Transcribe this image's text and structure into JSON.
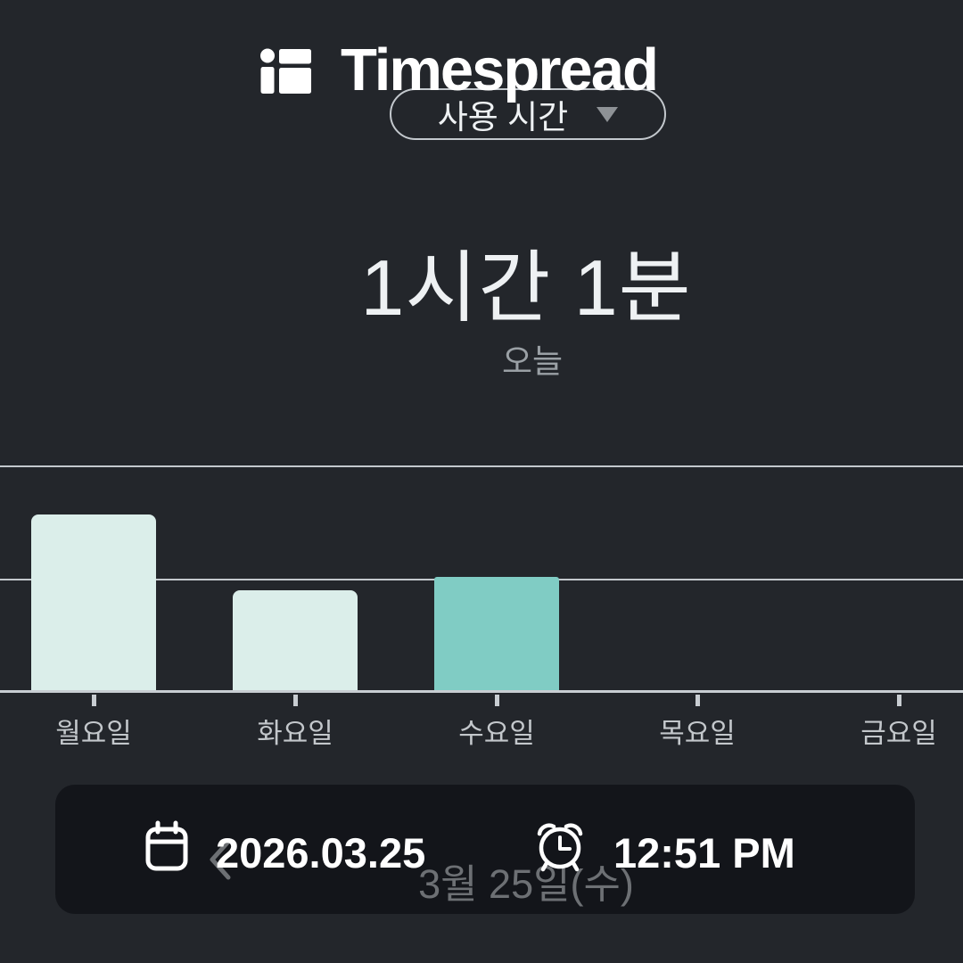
{
  "watermark": {
    "brand": "Timespread"
  },
  "header": {
    "metric_selector": {
      "label": "사용 시간",
      "state": "collapsed"
    }
  },
  "summary": {
    "value": "1시간 1분",
    "caption": "오늘"
  },
  "chart_data": {
    "type": "bar",
    "title": "",
    "xlabel": "",
    "ylabel": "",
    "categories": [
      "월요일",
      "화요일",
      "수요일",
      "목요일",
      "금요일"
    ],
    "values_minutes": [
      94,
      54,
      61,
      0,
      0
    ],
    "unit": "minutes",
    "highlight_index": 2,
    "gridlines_minutes": [
      60,
      120
    ],
    "ylim_minutes": [
      0,
      141
    ],
    "grid": "on",
    "legend": "none",
    "colors": {
      "bar": "#dbeeea",
      "bar_highlight": "#80ccc4",
      "gridline": "#c3c8cd",
      "label": "#c3c7cb"
    }
  },
  "date_nav": {
    "prev_icon": "chevron-left",
    "label": "3월 25일(수)"
  },
  "info_card": {
    "date": "2026.03.25",
    "time": "12:51 PM"
  },
  "colors": {
    "background": "#23262b",
    "card_overlay": "rgba(3,5,8,0.48)",
    "text_primary": "#eef1f3",
    "text_secondary": "#9aa0a5",
    "accent_teal": "#80ccc4",
    "accent_mint": "#dbeeea"
  }
}
